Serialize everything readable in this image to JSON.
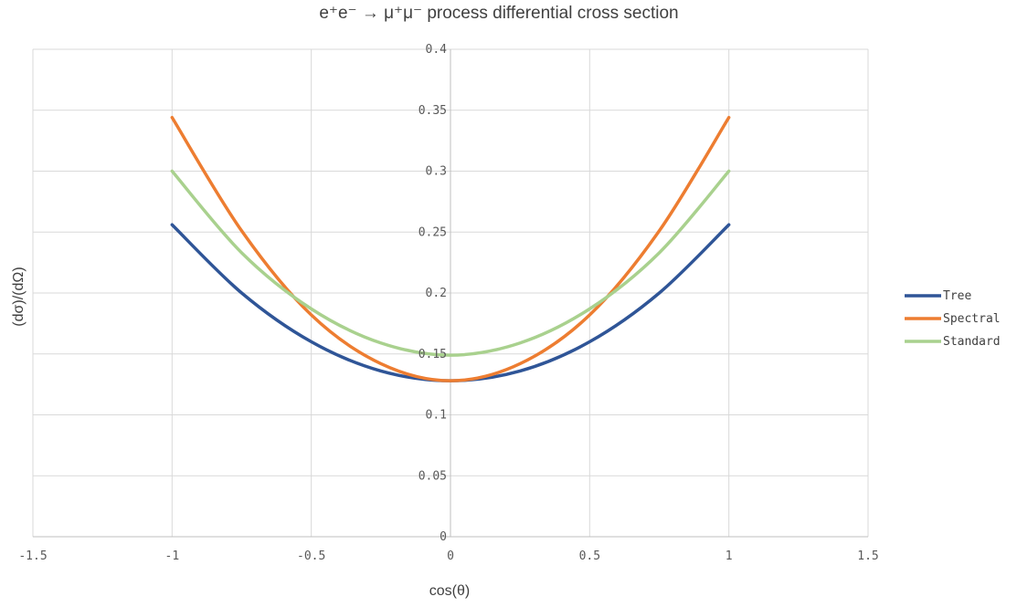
{
  "chart_data": {
    "type": "line",
    "title": "e⁺e⁻ → μ⁺μ⁻ process differential cross section",
    "xlabel": "cos(θ)",
    "ylabel": "(dσ)/(dΩ)",
    "xlim": [
      -1.5,
      1.5
    ],
    "ylim": [
      0,
      0.4
    ],
    "xticks": [
      -1.5,
      -1,
      -0.5,
      0,
      0.5,
      1,
      1.5
    ],
    "xtick_labels": [
      "-1.5",
      "-1",
      "-0.5",
      "0",
      "0.5",
      "1",
      "1.5"
    ],
    "yticks": [
      0,
      0.05,
      0.1,
      0.15,
      0.2,
      0.25,
      0.3,
      0.35,
      0.4
    ],
    "ytick_labels": [
      "0",
      "0.05",
      "0.1",
      "0.15",
      "0.2",
      "0.25",
      "0.3",
      "0.35",
      "0.4"
    ],
    "grid": true,
    "legend_position": "right",
    "x": [
      -1,
      -0.75,
      -0.5,
      -0.25,
      0,
      0.25,
      0.5,
      0.75,
      1
    ],
    "series": [
      {
        "name": "Tree",
        "color": "#2f5597",
        "values": [
          0.256,
          0.2,
          0.16,
          0.136,
          0.128,
          0.136,
          0.16,
          0.2,
          0.256
        ]
      },
      {
        "name": "Spectral",
        "color": "#ed7d31",
        "values": [
          0.344,
          0.251,
          0.182,
          0.142,
          0.128,
          0.142,
          0.182,
          0.251,
          0.344
        ]
      },
      {
        "name": "Standard",
        "color": "#a9d18e",
        "values": [
          0.3,
          0.233,
          0.187,
          0.159,
          0.149,
          0.159,
          0.187,
          0.233,
          0.3
        ]
      }
    ]
  }
}
